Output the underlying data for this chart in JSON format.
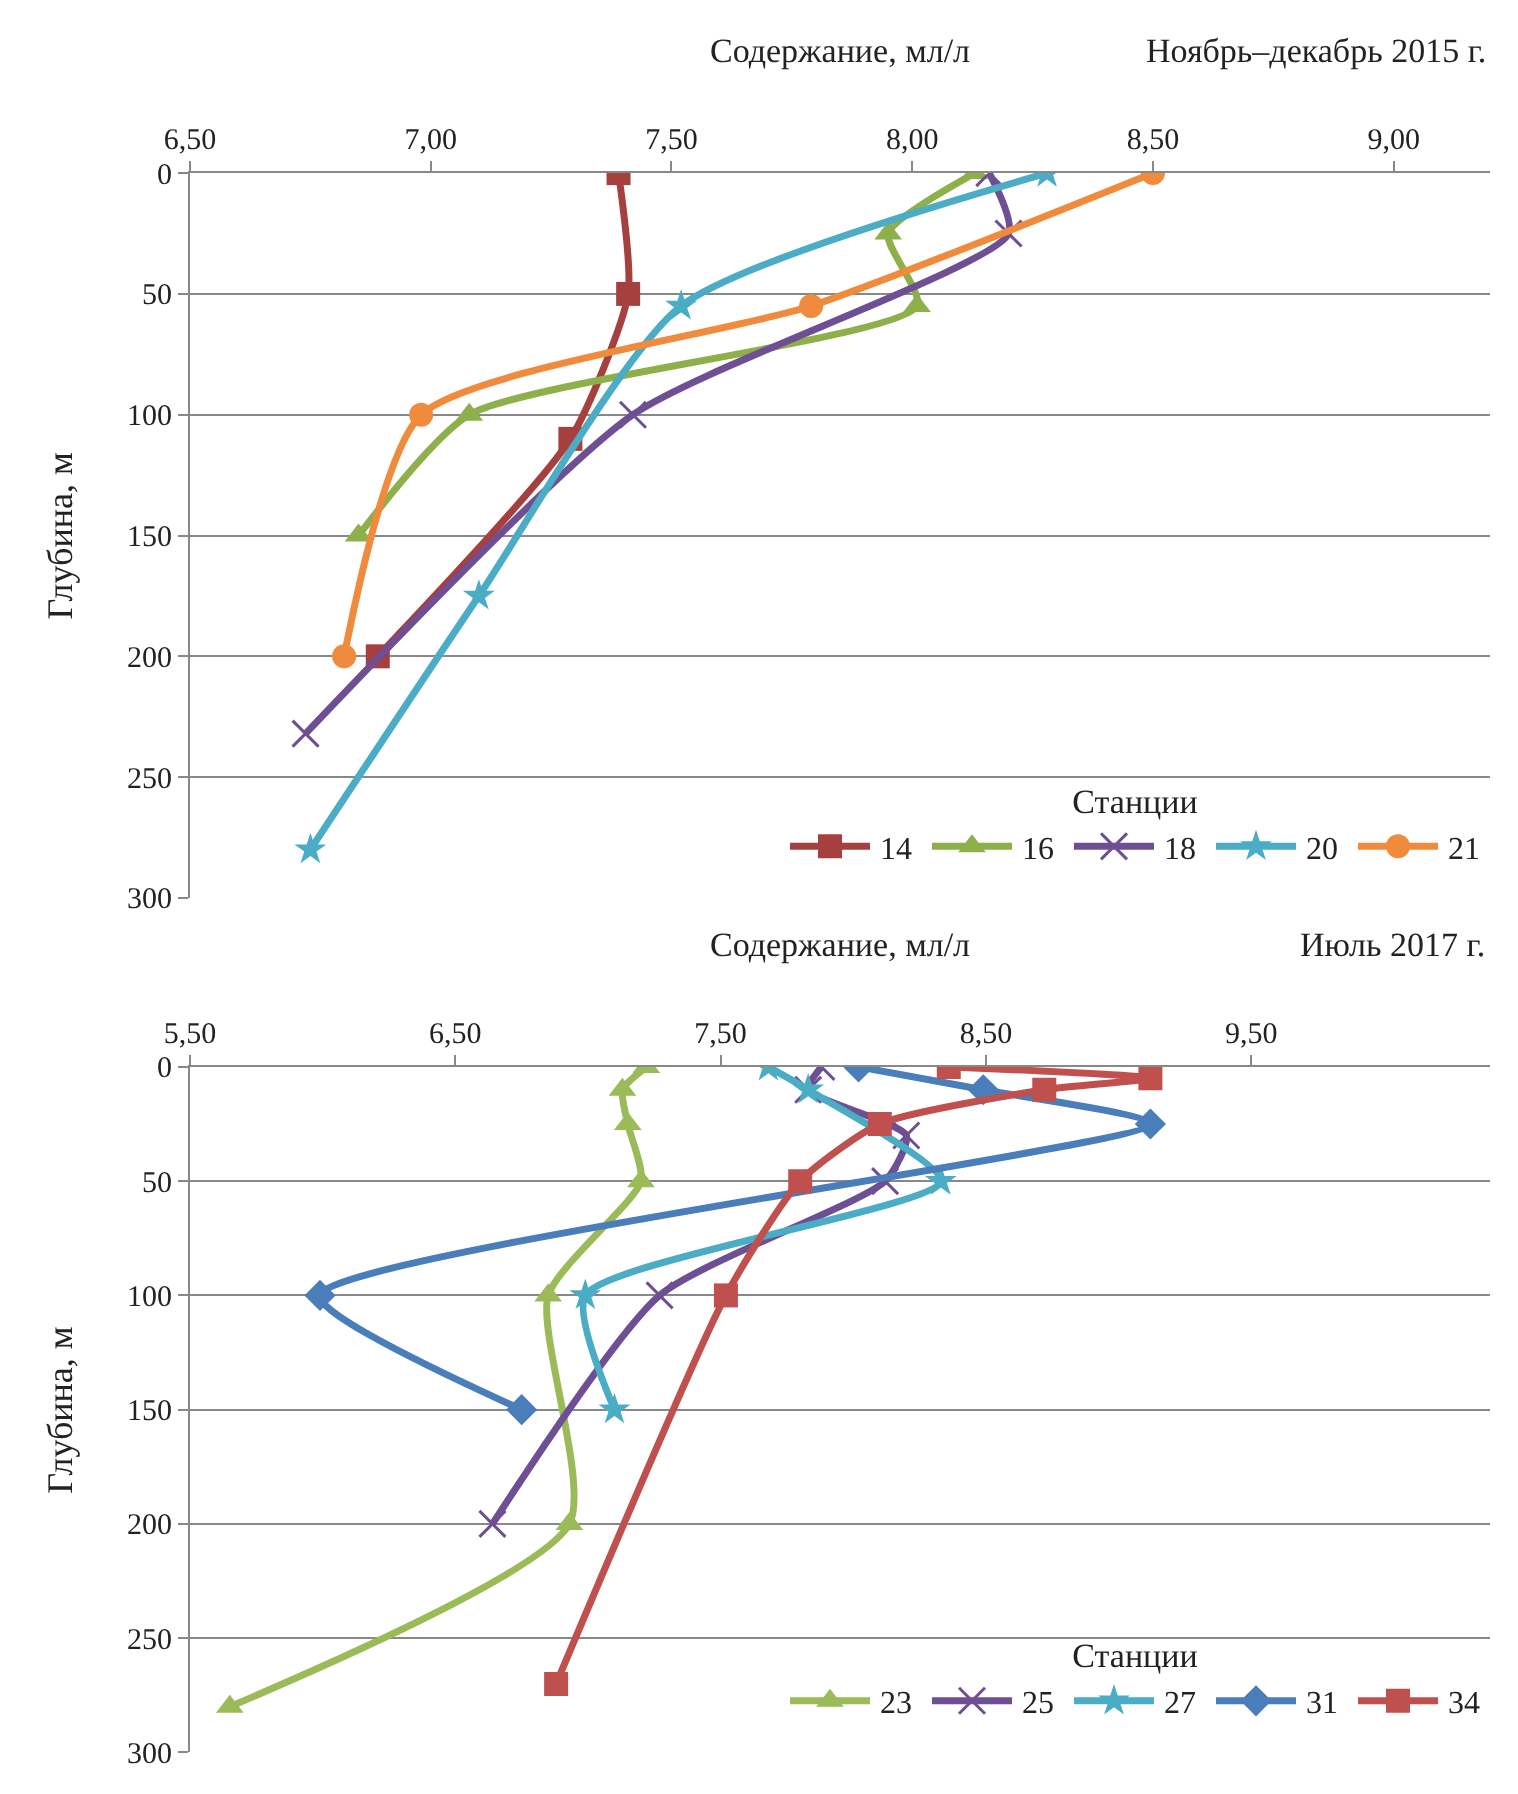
{
  "chart_data": [
    {
      "type": "line",
      "orientation": "horizontal",
      "title": "Ноябрь–декабрь 2015 г.",
      "xlabel": "Содержание, мл/л",
      "ylabel": "Глубина, м",
      "legend_title": "Станции",
      "legend": "bottom right",
      "grid": "y",
      "line_style": "solid",
      "xlim": [
        6.5,
        9.2
      ],
      "xticks": [
        {
          "value": 6.5,
          "label": "6,50"
        },
        {
          "value": 7.0,
          "label": "7,00"
        },
        {
          "value": 7.5,
          "label": "7,50"
        },
        {
          "value": 8.0,
          "label": "8,00"
        },
        {
          "value": 8.5,
          "label": "8,50"
        },
        {
          "value": 9.0,
          "label": "9,00"
        }
      ],
      "ylim": [
        300,
        0
      ],
      "yticks": [
        0,
        50,
        100,
        150,
        200,
        250,
        300
      ],
      "series": [
        {
          "name": "14",
          "color": "#a5403e",
          "marker": "square",
          "x": [
            0,
            50,
            110,
            200
          ],
          "values": [
            7.39,
            7.41,
            7.29,
            6.89
          ]
        },
        {
          "name": "16",
          "color": "#8db04a",
          "marker": "triangle",
          "x": [
            0,
            25,
            55,
            100,
            150
          ],
          "values": [
            8.13,
            7.95,
            8.01,
            7.08,
            6.85
          ]
        },
        {
          "name": "18",
          "color": "#6f4f93",
          "marker": "cross",
          "x": [
            0,
            25,
            100,
            232
          ],
          "values": [
            8.16,
            8.2,
            7.42,
            6.74
          ]
        },
        {
          "name": "20",
          "color": "#4bacc6",
          "marker": "star",
          "x": [
            0,
            55,
            175,
            280
          ],
          "values": [
            8.28,
            7.52,
            7.1,
            6.75
          ]
        },
        {
          "name": "21",
          "color": "#f08a3c",
          "marker": "circle",
          "x": [
            0,
            55,
            100,
            200
          ],
          "values": [
            8.5,
            7.79,
            6.98,
            6.82
          ]
        }
      ]
    },
    {
      "type": "line",
      "orientation": "horizontal",
      "title": "Июль 2017 г.",
      "xlabel": "Содержание, мл/л",
      "ylabel": "Глубина, м",
      "legend_title": "Станции",
      "legend": "bottom right",
      "grid": "y",
      "line_style": "solid",
      "xlim": [
        5.5,
        10.4
      ],
      "xticks": [
        {
          "value": 5.5,
          "label": "5,50"
        },
        {
          "value": 6.5,
          "label": "6,50"
        },
        {
          "value": 7.5,
          "label": "7,50"
        },
        {
          "value": 8.5,
          "label": "8,50"
        },
        {
          "value": 9.5,
          "label": "9,50"
        }
      ],
      "ylim": [
        300,
        0
      ],
      "yticks": [
        0,
        50,
        100,
        150,
        200,
        250,
        300
      ],
      "series": [
        {
          "name": "23",
          "color": "#9bbb59",
          "marker": "triangle",
          "x": [
            0,
            10,
            25,
            50,
            100,
            200,
            280
          ],
          "values": [
            7.22,
            7.13,
            7.15,
            7.2,
            6.85,
            6.93,
            5.65
          ]
        },
        {
          "name": "25",
          "color": "#6f4f93",
          "marker": "cross",
          "x": [
            0,
            10,
            30,
            50,
            100,
            200
          ],
          "values": [
            7.88,
            7.83,
            8.2,
            8.12,
            7.27,
            6.64
          ]
        },
        {
          "name": "27",
          "color": "#4bacc6",
          "marker": "star",
          "x": [
            0,
            10,
            50,
            100,
            150
          ],
          "values": [
            7.68,
            7.83,
            8.33,
            6.99,
            7.1
          ]
        },
        {
          "name": "31",
          "color": "#4a7ebb",
          "marker": "diamond",
          "x": [
            0,
            10,
            25,
            100,
            150
          ],
          "values": [
            8.02,
            8.49,
            9.12,
            5.99,
            6.75
          ]
        },
        {
          "name": "34",
          "color": "#c0504d",
          "marker": "square",
          "x": [
            0,
            5,
            10,
            25,
            50,
            100,
            270
          ],
          "values": [
            8.36,
            9.12,
            8.72,
            8.1,
            7.8,
            7.52,
            6.88
          ]
        }
      ]
    }
  ]
}
